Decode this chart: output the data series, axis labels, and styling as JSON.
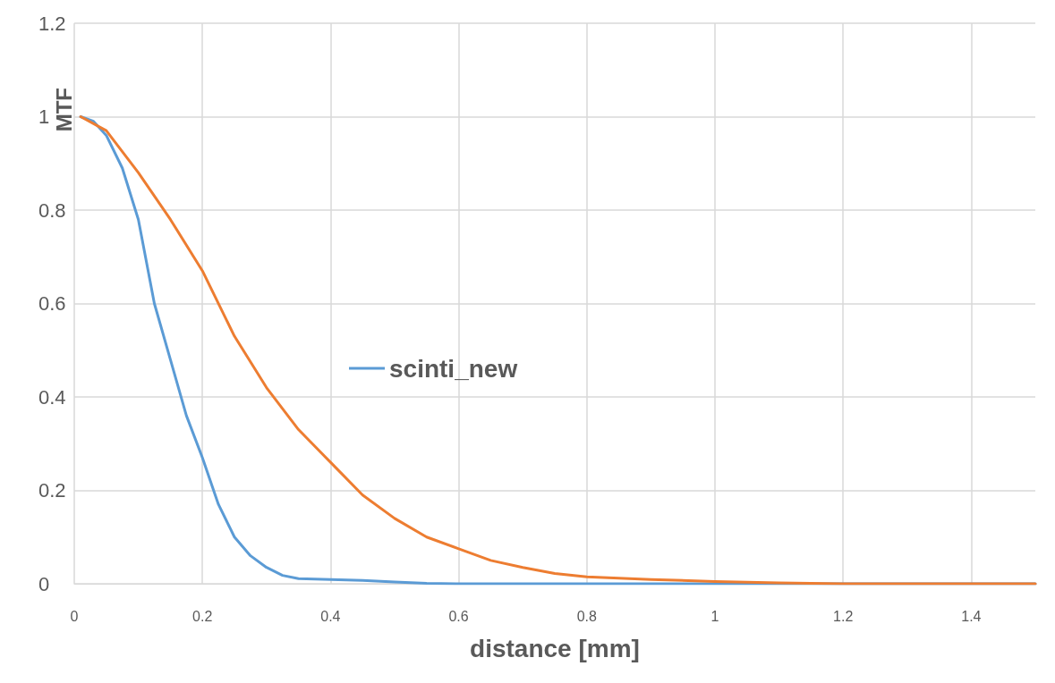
{
  "chart_data": {
    "type": "line",
    "xlabel": "distance [mm]",
    "ylabel": "MTF",
    "xlim": [
      0,
      1.5
    ],
    "xticks": [
      0,
      0.2,
      0.4,
      0.6,
      0.8,
      1,
      1.2,
      1.4
    ],
    "ylim": [
      0,
      1.2
    ],
    "yticks": [
      0,
      0.2,
      0.4,
      0.6,
      0.8,
      1,
      1.2
    ],
    "grid": true,
    "legend": "center",
    "marker": "none",
    "line_style": "solid",
    "series": [
      {
        "name": "scinti_new",
        "color": "#5b9bd5",
        "x": [
          0.01,
          0.03,
          0.05,
          0.075,
          0.1,
          0.125,
          0.15,
          0.175,
          0.2,
          0.225,
          0.25,
          0.275,
          0.3,
          0.325,
          0.35,
          0.4,
          0.45,
          0.5,
          0.55,
          0.6,
          0.8,
          1,
          1.2,
          1.5
        ],
        "values": [
          1,
          0.99,
          0.96,
          0.89,
          0.78,
          0.6,
          0.48,
          0.36,
          0.27,
          0.17,
          0.1,
          0.06,
          0.035,
          0.018,
          0.011,
          0.009,
          0.007,
          0.004,
          0.001,
          0,
          0,
          0,
          0,
          0
        ]
      },
      {
        "color": "#ed7d31",
        "x": [
          0.01,
          0.05,
          0.1,
          0.15,
          0.2,
          0.25,
          0.3,
          0.35,
          0.4,
          0.45,
          0.5,
          0.55,
          0.6,
          0.65,
          0.7,
          0.75,
          0.8,
          0.9,
          1,
          1.1,
          1.2,
          1.5
        ],
        "values": [
          1,
          0.97,
          0.88,
          0.78,
          0.67,
          0.53,
          0.42,
          0.33,
          0.26,
          0.19,
          0.14,
          0.1,
          0.075,
          0.05,
          0.035,
          0.022,
          0.015,
          0.009,
          0.005,
          0.002,
          0,
          0
        ]
      }
    ]
  }
}
